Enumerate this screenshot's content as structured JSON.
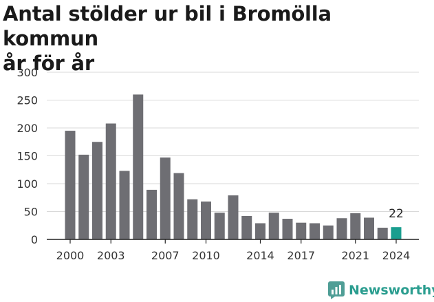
{
  "header": {
    "title_line1": "Antal stölder ur bil i Bromölla kommun",
    "title_line2": "år för år"
  },
  "branding": {
    "logo_text": "Newsworthy"
  },
  "colors": {
    "bar": "#6e6e73",
    "highlight": "#1a9e8f",
    "grid": "#d9d9d9",
    "axis": "#222222",
    "brand": "#2a9d8f"
  },
  "chart_data": {
    "type": "bar",
    "categories": [
      "2000",
      "2001",
      "2002",
      "2003",
      "2004",
      "2005",
      "2006",
      "2007",
      "2008",
      "2009",
      "2010",
      "2011",
      "2012",
      "2013",
      "2014",
      "2015",
      "2016",
      "2017",
      "2018",
      "2019",
      "2020",
      "2021",
      "2022",
      "2023",
      "2024"
    ],
    "values": [
      195,
      152,
      175,
      208,
      123,
      260,
      89,
      147,
      119,
      72,
      68,
      48,
      79,
      42,
      29,
      48,
      37,
      30,
      29,
      25,
      38,
      47,
      39,
      21,
      22
    ],
    "x_tick_labels": [
      "2000",
      "2003",
      "2007",
      "2010",
      "2014",
      "2017",
      "2021",
      "2024"
    ],
    "y_ticks": [
      0,
      50,
      100,
      150,
      200,
      250,
      300
    ],
    "ylim": [
      0,
      300
    ],
    "highlight_category": "2024",
    "annotation": "22",
    "title": "Antal stölder ur bil i Bromölla kommun år för år",
    "xlabel": "",
    "ylabel": "",
    "grid": true,
    "legend": "none"
  }
}
